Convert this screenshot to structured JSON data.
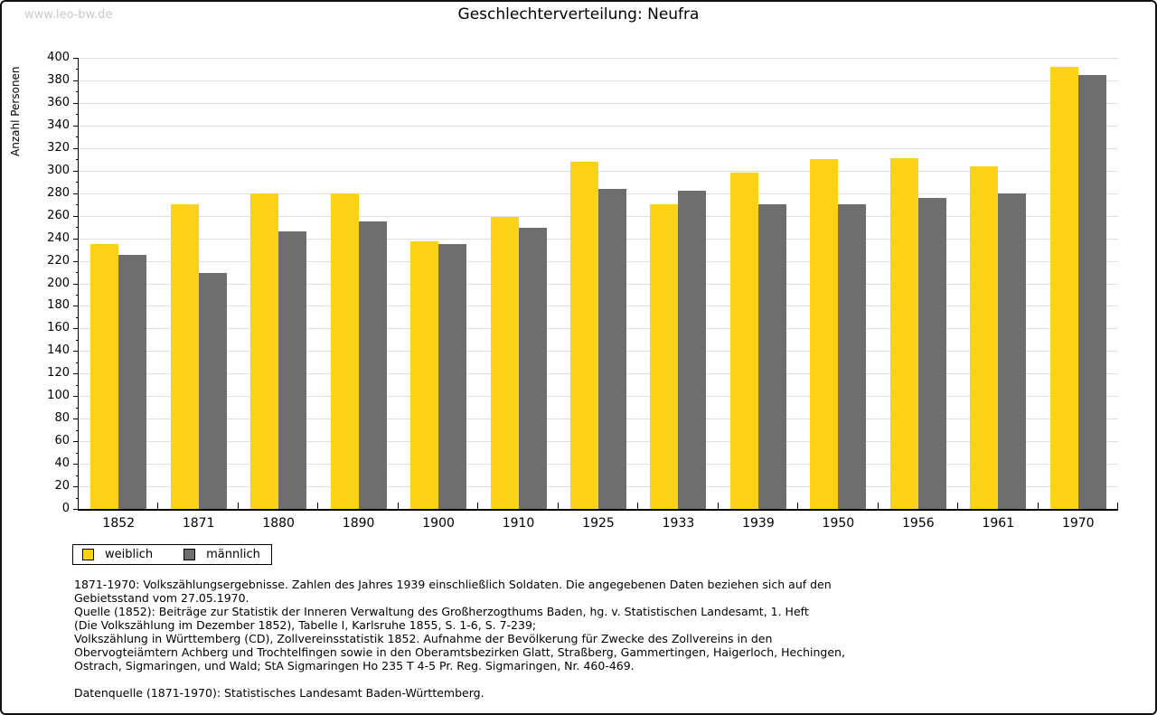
{
  "page": {
    "watermark": "www.leo-bw.de",
    "title": "Geschlechterverteilung: Neufra"
  },
  "chart_data": {
    "type": "bar",
    "title": "Geschlechterverteilung: Neufra",
    "xlabel": "",
    "ylabel": "Anzahl Personen",
    "ylim": [
      0,
      400
    ],
    "ytick_step": 20,
    "yminor_step": 10,
    "grid": true,
    "legend_position": "bottom-left-below-plot",
    "categories": [
      "1852",
      "1871",
      "1880",
      "1890",
      "1900",
      "1910",
      "1925",
      "1933",
      "1939",
      "1950",
      "1956",
      "1961",
      "1970"
    ],
    "series": [
      {
        "name": "weiblich",
        "color": "#FCD116",
        "values": [
          235,
          270,
          280,
          280,
          237,
          259,
          308,
          270,
          298,
          310,
          311,
          304,
          392
        ]
      },
      {
        "name": "männlich",
        "color": "#6E6E6E",
        "values": [
          225,
          209,
          246,
          255,
          235,
          249,
          284,
          282,
          270,
          270,
          276,
          280,
          385
        ]
      }
    ]
  },
  "footer": {
    "notes_lines": [
      "1871-1970: Volkszählungsergebnisse. Zahlen des Jahres 1939 einschließlich Soldaten. Die angegebenen Daten beziehen sich auf den",
      "Gebietsstand vom 27.05.1970.",
      "Quelle (1852): Beiträge zur Statistik der Inneren Verwaltung des Großherzogthums Baden, hg. v. Statistischen Landesamt, 1. Heft",
      "(Die Volkszählung im Dezember 1852), Tabelle I, Karlsruhe 1855, S. 1-6, S. 7-239;",
      "Volkszählung in Württemberg (CD), Zollvereinsstatistik 1852. Aufnahme der Bevölkerung für Zwecke des Zollvereins in den",
      "Obervogteiämtern Achberg und Trochtelfingen sowie in den Oberamtsbezirken Glatt, Straßberg, Gammertingen, Haigerloch, Hechingen,",
      "Ostrach, Sigmaringen, und Wald; StA Sigmaringen Ho 235 T 4-5 Pr. Reg. Sigmaringen, Nr. 460-469."
    ],
    "datasource": "Datenquelle (1871-1970): Statistisches Landesamt Baden-Württemberg."
  }
}
